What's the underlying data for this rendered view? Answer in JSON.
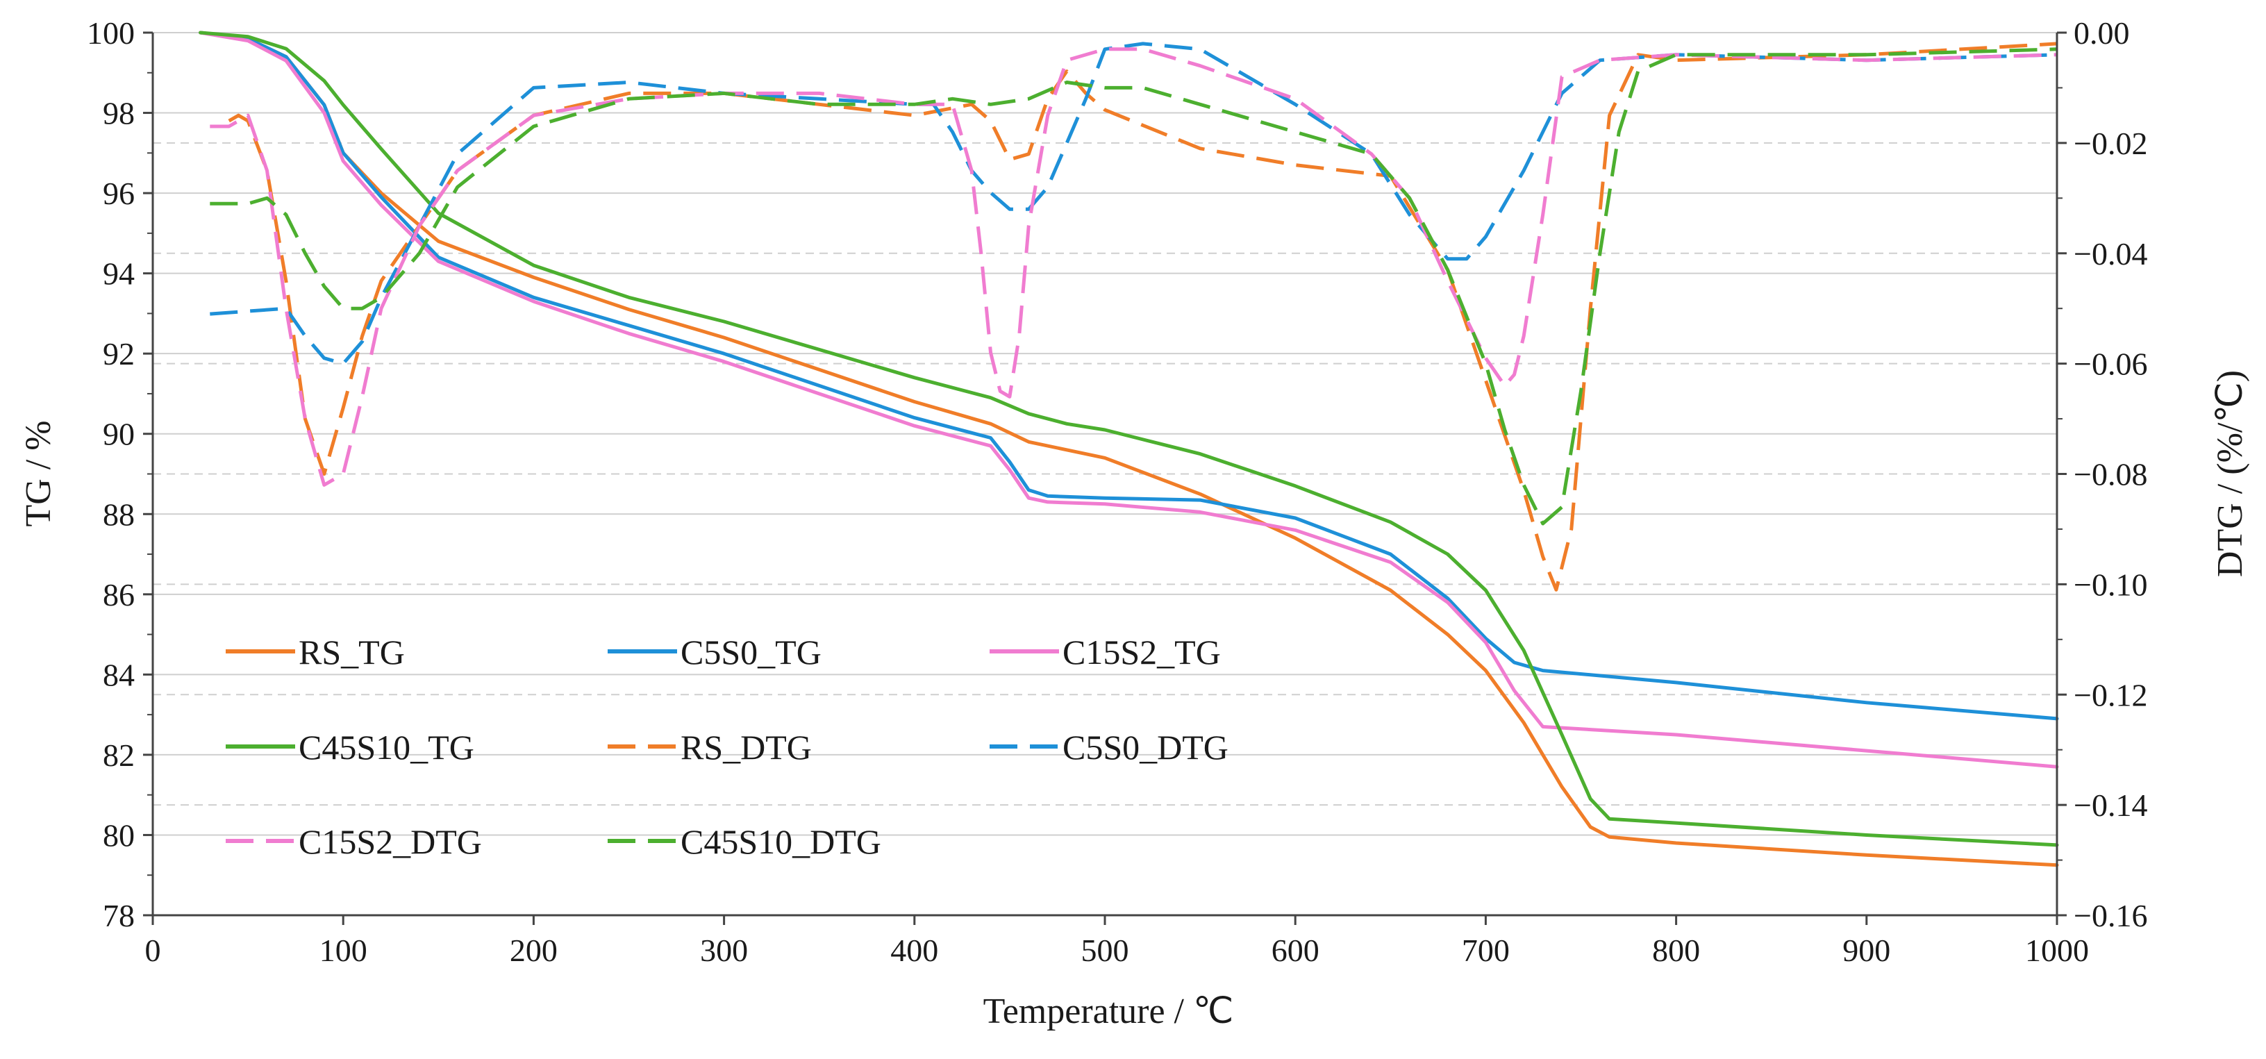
{
  "chart_data": {
    "type": "line",
    "xlabel": "Temperature / ℃",
    "ylabel_left": "TG / %",
    "ylabel_right": "DTG / (%/℃)",
    "x_range": [
      0,
      1000
    ],
    "y_left_range": [
      78,
      100
    ],
    "y_right_range": [
      -0.16,
      0.0
    ],
    "x_ticks": [
      "0",
      "100",
      "200",
      "300",
      "400",
      "500",
      "600",
      "700",
      "800",
      "900",
      "1000"
    ],
    "y_left_ticks": [
      "78",
      "80",
      "82",
      "84",
      "86",
      "88",
      "90",
      "92",
      "94",
      "96",
      "98",
      "100"
    ],
    "y_right_ticks": [
      "−0.16",
      "−0.14",
      "−0.12",
      "−0.10",
      "−0.08",
      "−0.06",
      "−0.04",
      "−0.02",
      "0.00"
    ],
    "gridlines": "horizontal (solid for TG axis, dashed for DTG axis)",
    "legend_position": "lower-left",
    "series": [
      {
        "name": "RS_TG",
        "axis": "left",
        "style": "solid",
        "color": "#F07D28",
        "x": [
          25,
          50,
          70,
          90,
          100,
          120,
          150,
          200,
          250,
          300,
          350,
          400,
          440,
          460,
          500,
          550,
          600,
          650,
          680,
          700,
          720,
          740,
          755,
          765,
          800,
          900,
          1000
        ],
        "y": [
          100,
          99.85,
          99.4,
          98.2,
          97.0,
          96.0,
          94.8,
          93.9,
          93.1,
          92.4,
          91.6,
          90.8,
          90.25,
          89.8,
          89.4,
          88.5,
          87.4,
          86.1,
          85.0,
          84.1,
          82.8,
          81.2,
          80.2,
          79.95,
          79.8,
          79.5,
          79.25
        ]
      },
      {
        "name": "C5S0_TG",
        "axis": "left",
        "style": "solid",
        "color": "#1E90D8",
        "x": [
          25,
          50,
          70,
          90,
          100,
          120,
          150,
          200,
          250,
          300,
          350,
          400,
          440,
          450,
          460,
          470,
          500,
          550,
          600,
          650,
          680,
          700,
          715,
          730,
          800,
          900,
          1000
        ],
        "y": [
          100,
          99.85,
          99.4,
          98.2,
          97.0,
          95.9,
          94.4,
          93.4,
          92.7,
          92.0,
          91.2,
          90.4,
          89.9,
          89.3,
          88.6,
          88.45,
          88.4,
          88.35,
          87.9,
          87.0,
          85.9,
          84.9,
          84.3,
          84.1,
          83.8,
          83.3,
          82.9
        ]
      },
      {
        "name": "C15S2_TG",
        "axis": "left",
        "style": "solid",
        "color": "#F07CD0",
        "x": [
          25,
          50,
          70,
          90,
          100,
          120,
          150,
          200,
          250,
          300,
          350,
          400,
          440,
          450,
          460,
          470,
          500,
          550,
          600,
          650,
          680,
          700,
          715,
          730,
          800,
          900,
          1000
        ],
        "y": [
          100,
          99.8,
          99.3,
          98.0,
          96.8,
          95.7,
          94.3,
          93.3,
          92.5,
          91.8,
          91.0,
          90.2,
          89.7,
          89.1,
          88.4,
          88.3,
          88.25,
          88.05,
          87.6,
          86.8,
          85.8,
          84.8,
          83.6,
          82.7,
          82.5,
          82.1,
          81.7
        ]
      },
      {
        "name": "C45S10_TG",
        "axis": "left",
        "style": "solid",
        "color": "#4CAF2F",
        "x": [
          25,
          50,
          70,
          90,
          100,
          120,
          150,
          200,
          250,
          300,
          350,
          400,
          440,
          460,
          480,
          500,
          550,
          600,
          650,
          680,
          700,
          720,
          740,
          755,
          765,
          800,
          900,
          1000
        ],
        "y": [
          100,
          99.9,
          99.6,
          98.8,
          98.2,
          97.1,
          95.5,
          94.2,
          93.4,
          92.8,
          92.1,
          91.4,
          90.9,
          90.5,
          90.25,
          90.1,
          89.5,
          88.7,
          87.8,
          87.0,
          86.1,
          84.6,
          82.5,
          80.9,
          80.4,
          80.3,
          80.0,
          79.75
        ]
      },
      {
        "name": "RS_DTG",
        "axis": "right",
        "style": "dashed",
        "color": "#F07D28",
        "x": [
          40,
          45,
          50,
          60,
          70,
          80,
          90,
          100,
          110,
          120,
          140,
          160,
          200,
          250,
          300,
          350,
          400,
          430,
          440,
          450,
          460,
          470,
          480,
          490,
          500,
          550,
          600,
          650,
          680,
          700,
          710,
          720,
          730,
          737,
          745,
          755,
          765,
          780,
          800,
          900,
          1000
        ],
        "y": [
          -0.016,
          -0.015,
          -0.016,
          -0.025,
          -0.045,
          -0.07,
          -0.08,
          -0.068,
          -0.055,
          -0.045,
          -0.035,
          -0.025,
          -0.015,
          -0.011,
          -0.011,
          -0.013,
          -0.015,
          -0.013,
          -0.016,
          -0.023,
          -0.022,
          -0.012,
          -0.007,
          -0.011,
          -0.014,
          -0.021,
          -0.024,
          -0.026,
          -0.043,
          -0.063,
          -0.073,
          -0.083,
          -0.095,
          -0.101,
          -0.09,
          -0.05,
          -0.015,
          -0.004,
          -0.005,
          -0.004,
          -0.002
        ]
      },
      {
        "name": "C5S0_DTG",
        "axis": "right",
        "style": "dashed",
        "color": "#1E90D8",
        "x": [
          30,
          70,
          80,
          90,
          100,
          110,
          120,
          140,
          160,
          200,
          250,
          300,
          350,
          400,
          410,
          420,
          430,
          440,
          450,
          460,
          470,
          480,
          490,
          500,
          520,
          550,
          600,
          640,
          660,
          680,
          690,
          700,
          720,
          740,
          760,
          800,
          900,
          1000
        ],
        "y": [
          -0.051,
          -0.05,
          -0.055,
          -0.059,
          -0.06,
          -0.056,
          -0.048,
          -0.035,
          -0.022,
          -0.01,
          -0.009,
          -0.011,
          -0.012,
          -0.013,
          -0.013,
          -0.018,
          -0.025,
          -0.029,
          -0.032,
          -0.032,
          -0.028,
          -0.02,
          -0.012,
          -0.003,
          -0.002,
          -0.003,
          -0.013,
          -0.022,
          -0.033,
          -0.041,
          -0.041,
          -0.037,
          -0.025,
          -0.011,
          -0.005,
          -0.004,
          -0.005,
          -0.004
        ]
      },
      {
        "name": "C15S2_DTG",
        "axis": "right",
        "style": "dashed",
        "color": "#F07CD0",
        "x": [
          30,
          40,
          50,
          60,
          70,
          80,
          90,
          100,
          110,
          120,
          140,
          160,
          200,
          250,
          300,
          350,
          400,
          420,
          430,
          435,
          440,
          445,
          450,
          455,
          460,
          470,
          480,
          500,
          520,
          550,
          600,
          640,
          660,
          680,
          700,
          710,
          715,
          720,
          730,
          740,
          760,
          800,
          900,
          1000
        ],
        "y": [
          -0.017,
          -0.017,
          -0.015,
          -0.025,
          -0.05,
          -0.07,
          -0.082,
          -0.08,
          -0.066,
          -0.05,
          -0.035,
          -0.025,
          -0.015,
          -0.012,
          -0.011,
          -0.011,
          -0.013,
          -0.013,
          -0.025,
          -0.04,
          -0.058,
          -0.065,
          -0.066,
          -0.055,
          -0.035,
          -0.015,
          -0.005,
          -0.003,
          -0.003,
          -0.006,
          -0.012,
          -0.022,
          -0.03,
          -0.045,
          -0.059,
          -0.064,
          -0.062,
          -0.055,
          -0.033,
          -0.008,
          -0.005,
          -0.004,
          -0.005,
          -0.004
        ]
      },
      {
        "name": "C45S10_DTG",
        "axis": "right",
        "style": "dashed",
        "color": "#4CAF2F",
        "x": [
          30,
          50,
          60,
          70,
          80,
          90,
          100,
          110,
          120,
          140,
          160,
          200,
          250,
          300,
          350,
          400,
          420,
          440,
          460,
          480,
          500,
          520,
          550,
          600,
          640,
          660,
          680,
          700,
          710,
          720,
          730,
          740,
          750,
          760,
          770,
          780,
          800,
          900,
          1000
        ],
        "y": [
          -0.031,
          -0.031,
          -0.03,
          -0.033,
          -0.04,
          -0.046,
          -0.05,
          -0.05,
          -0.048,
          -0.04,
          -0.028,
          -0.017,
          -0.012,
          -0.011,
          -0.013,
          -0.013,
          -0.012,
          -0.013,
          -0.012,
          -0.009,
          -0.01,
          -0.01,
          -0.013,
          -0.018,
          -0.022,
          -0.03,
          -0.043,
          -0.06,
          -0.072,
          -0.082,
          -0.089,
          -0.086,
          -0.065,
          -0.04,
          -0.018,
          -0.007,
          -0.004,
          -0.004,
          -0.003
        ]
      }
    ]
  }
}
